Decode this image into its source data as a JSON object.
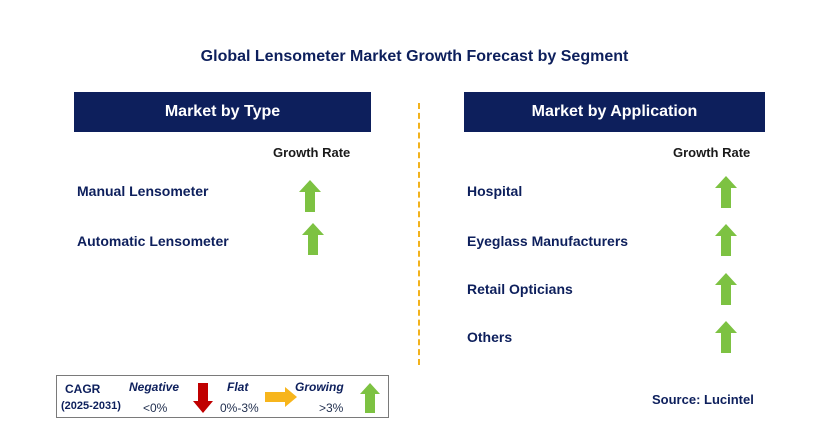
{
  "title": "Global Lensometer Market Growth Forecast by Segment",
  "left_panel": {
    "header": "Market by Type",
    "growth_rate_label": "Growth Rate",
    "items": [
      {
        "label": "Manual Lensometer",
        "trend": "growing"
      },
      {
        "label": "Automatic Lensometer",
        "trend": "growing"
      }
    ]
  },
  "right_panel": {
    "header": "Market by Application",
    "growth_rate_label": "Growth Rate",
    "items": [
      {
        "label": "Hospital",
        "trend": "growing"
      },
      {
        "label": "Eyeglass Manufacturers",
        "trend": "growing"
      },
      {
        "label": "Retail Opticians",
        "trend": "growing"
      },
      {
        "label": "Others",
        "trend": "growing"
      }
    ]
  },
  "legend": {
    "cagr": "CAGR",
    "period": "(2025-2031)",
    "negative": {
      "label": "Negative",
      "range": "<0%"
    },
    "flat": {
      "label": "Flat",
      "range": "0%-3%"
    },
    "growing": {
      "label": "Growing",
      "range": ">3%"
    }
  },
  "source": "Source: Lucintel",
  "colors": {
    "header_bg": "#0d1f5c",
    "growing": "#7dc242",
    "negative": "#c00000",
    "flat": "#f7b51c",
    "divider": "#f2b21c"
  }
}
